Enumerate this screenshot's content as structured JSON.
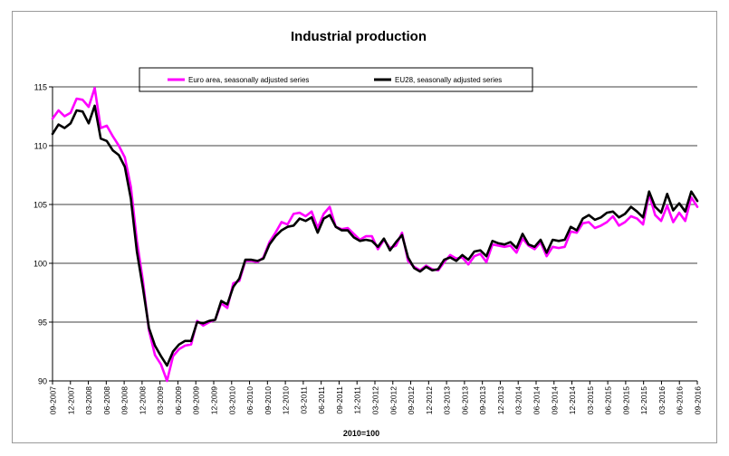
{
  "chart_data": {
    "type": "line",
    "title": "Industrial production",
    "xlabel": "2010=100",
    "ylabel": "",
    "ylim": [
      90,
      115
    ],
    "y_ticks": [
      90,
      95,
      100,
      105,
      110,
      115
    ],
    "grid": true,
    "legend_position": "top-center",
    "x_tick_labels": [
      "09-2007",
      "12-2007",
      "03-2008",
      "06-2008",
      "09-2008",
      "12-2008",
      "03-2009",
      "06-2009",
      "09-2009",
      "12-2009",
      "03-2010",
      "06-2010",
      "09-2010",
      "12-2010",
      "03-2011",
      "06-2011",
      "09-2011",
      "12-2011",
      "03-2012",
      "06-2012",
      "09-2012",
      "12-2012",
      "03-2013",
      "06-2013",
      "09-2013",
      "12-2013",
      "03-2014",
      "06-2014",
      "09-2014",
      "12-2014",
      "03-2015",
      "06-2015",
      "09-2015",
      "12-2015",
      "03-2016",
      "06-2016",
      "09-2016"
    ],
    "series": [
      {
        "name": "Euro area, seasonally adjusted series",
        "color": "#ff00ff",
        "values": [
          112.3,
          113.0,
          112.5,
          112.8,
          114.0,
          113.9,
          113.3,
          114.9,
          111.5,
          111.7,
          110.8,
          110.0,
          109.0,
          106.5,
          101.9,
          98.5,
          94.3,
          92.2,
          91.4,
          90.0,
          92.1,
          92.7,
          93.0,
          93.1,
          95.1,
          94.7,
          95.0,
          95.2,
          96.6,
          96.2,
          98.3,
          98.5,
          100.2,
          100.2,
          100.1,
          100.5,
          101.8,
          102.6,
          103.5,
          103.3,
          104.2,
          104.3,
          104.0,
          104.4,
          103.0,
          104.2,
          104.8,
          103.1,
          102.9,
          103.0,
          102.5,
          102.0,
          102.3,
          102.3,
          101.2,
          102.0,
          101.3,
          101.5,
          102.6,
          100.2,
          99.7,
          99.4,
          99.8,
          99.5,
          99.4,
          100.1,
          100.7,
          100.4,
          100.5,
          99.9,
          100.6,
          100.8,
          100.1,
          101.6,
          101.5,
          101.4,
          101.5,
          100.9,
          102.1,
          101.5,
          101.2,
          101.8,
          100.6,
          101.4,
          101.3,
          101.4,
          102.7,
          102.6,
          103.4,
          103.5,
          103.0,
          103.2,
          103.5,
          104.0,
          103.2,
          103.5,
          104.0,
          103.8,
          103.3,
          105.9,
          104.1,
          103.6,
          104.9,
          103.5,
          104.3,
          103.6,
          105.6,
          104.8
        ]
      },
      {
        "name": "EU28, seasonally adjusted series",
        "color": "#000000",
        "values": [
          111.0,
          111.8,
          111.5,
          111.9,
          113.0,
          112.9,
          111.9,
          113.4,
          110.6,
          110.4,
          109.6,
          109.2,
          108.2,
          105.5,
          101.0,
          97.9,
          94.5,
          93.0,
          92.1,
          91.3,
          92.5,
          93.1,
          93.4,
          93.4,
          95.0,
          94.9,
          95.1,
          95.2,
          96.8,
          96.5,
          98.0,
          98.7,
          100.3,
          100.3,
          100.2,
          100.4,
          101.6,
          102.3,
          102.8,
          103.1,
          103.2,
          103.8,
          103.6,
          103.9,
          102.6,
          103.8,
          104.1,
          103.1,
          102.8,
          102.8,
          102.2,
          101.9,
          102.0,
          101.9,
          101.4,
          102.1,
          101.1,
          101.8,
          102.4,
          100.5,
          99.6,
          99.3,
          99.7,
          99.4,
          99.5,
          100.3,
          100.5,
          100.2,
          100.7,
          100.3,
          101.0,
          101.1,
          100.6,
          101.9,
          101.7,
          101.6,
          101.8,
          101.3,
          102.5,
          101.6,
          101.4,
          102.0,
          100.9,
          102.0,
          101.9,
          102.0,
          103.1,
          102.8,
          103.8,
          104.1,
          103.7,
          103.9,
          104.3,
          104.4,
          103.9,
          104.2,
          104.8,
          104.4,
          103.9,
          106.1,
          104.8,
          104.3,
          105.9,
          104.5,
          105.1,
          104.4,
          106.1,
          105.3
        ]
      }
    ]
  }
}
